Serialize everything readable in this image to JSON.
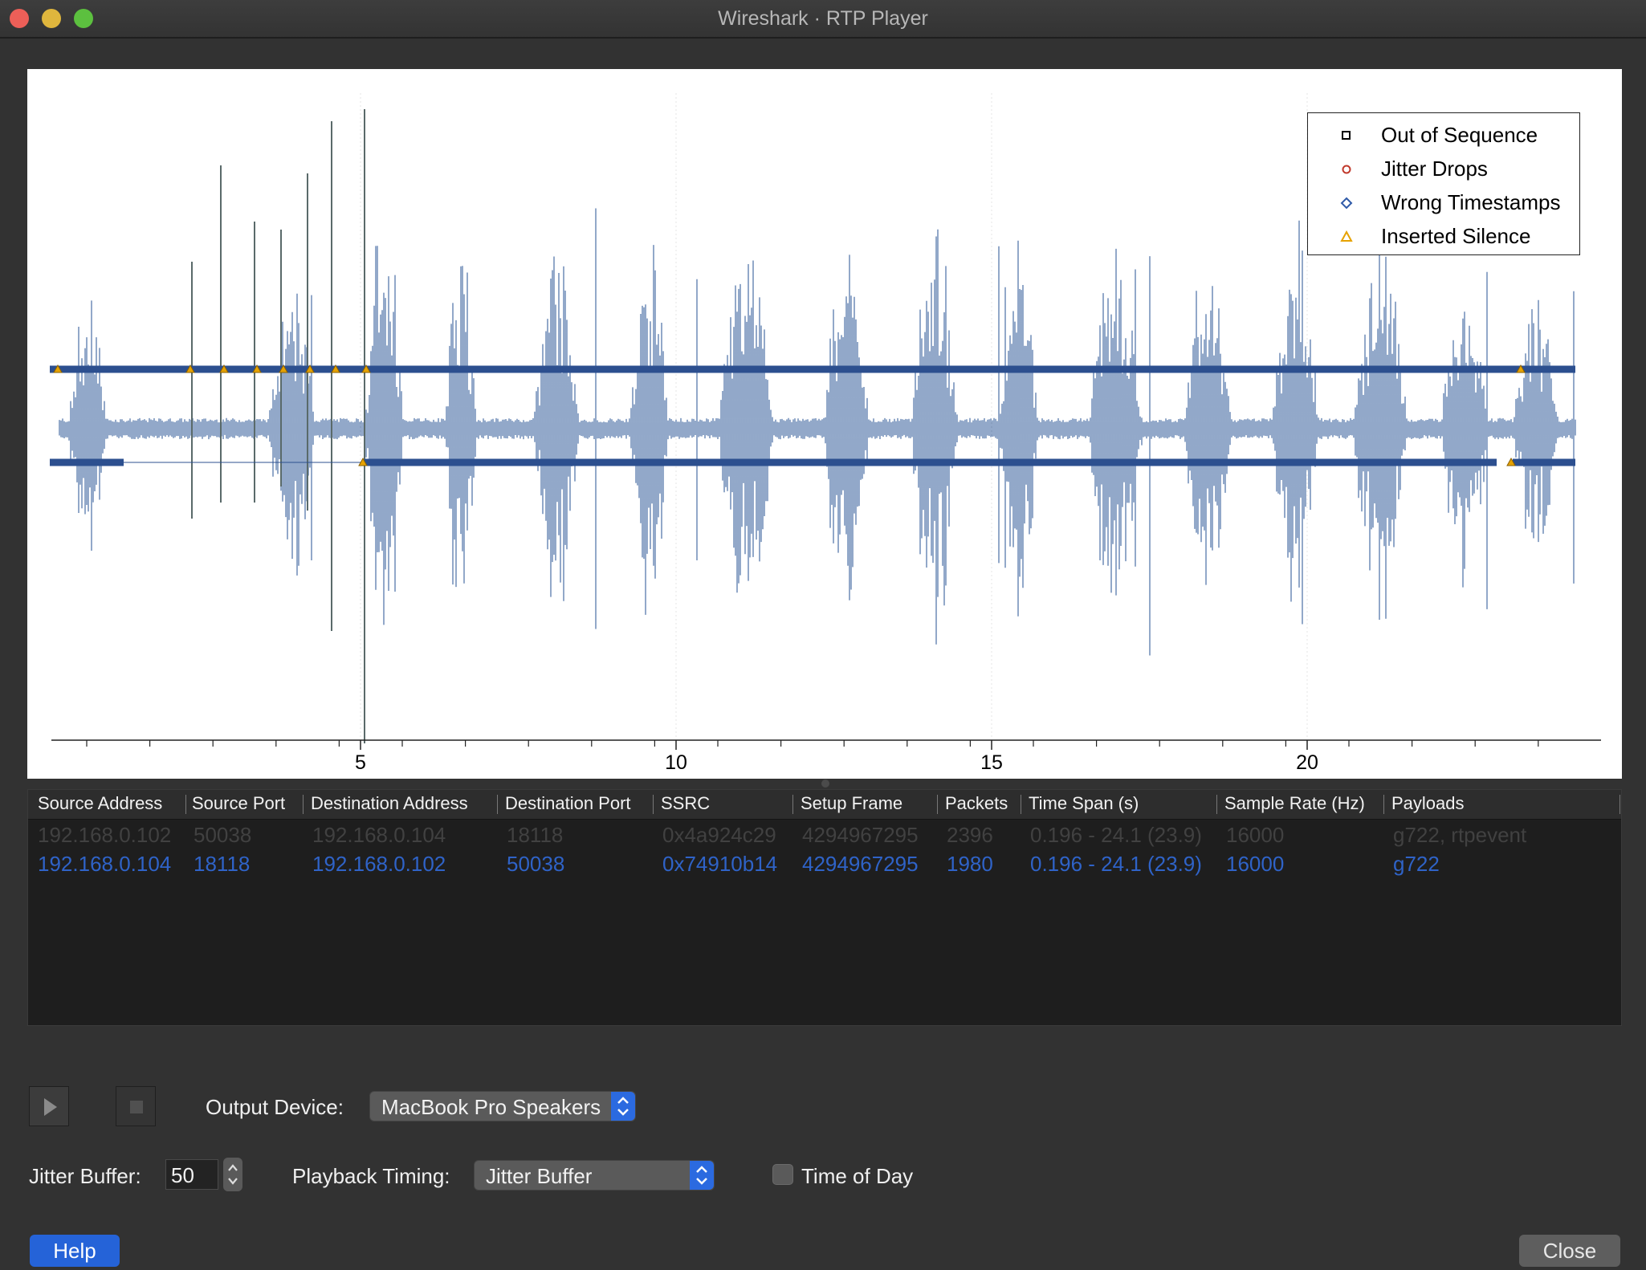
{
  "window": {
    "title": "Wireshark · RTP Player"
  },
  "plot": {
    "x_ticks": [
      "5",
      "10",
      "15",
      "20"
    ],
    "legend": [
      {
        "label": "Out of Sequence",
        "marker": "square",
        "color": "#000000"
      },
      {
        "label": "Jitter Drops",
        "marker": "circle",
        "color": "#c0392b"
      },
      {
        "label": "Wrong Timestamps",
        "marker": "diamond",
        "color": "#2f5aa8"
      },
      {
        "label": "Inserted Silence",
        "marker": "triangle",
        "color": "#e6a200"
      }
    ],
    "waveform_color": "#4a6fa5"
  },
  "table": {
    "columns": [
      "Source Address",
      "Source Port",
      "Destination Address",
      "Destination Port",
      "SSRC",
      "Setup Frame",
      "Packets",
      "Time Span (s)",
      "Sample Rate (Hz)",
      "Payloads"
    ],
    "rows": [
      [
        "192.168.0.102",
        "50038",
        "192.168.0.104",
        "18118",
        "0x4a924c29",
        "4294967295",
        "2396",
        "0.196 - 24.1 (23.9)",
        "16000",
        "g722, rtpevent"
      ],
      [
        "192.168.0.104",
        "18118",
        "192.168.0.102",
        "50038",
        "0x74910b14",
        "4294967295",
        "1980",
        "0.196 - 24.1 (23.9)",
        "16000",
        "g722"
      ]
    ]
  },
  "controls": {
    "output_device_label": "Output Device:",
    "output_device_value": "MacBook Pro Speakers",
    "jitter_buffer_label": "Jitter Buffer:",
    "jitter_buffer_value": "50",
    "playback_timing_label": "Playback Timing:",
    "playback_timing_value": "Jitter Buffer",
    "time_of_day_label": "Time of Day",
    "time_of_day_checked": false
  },
  "buttons": {
    "help": "Help",
    "close": "Close"
  }
}
